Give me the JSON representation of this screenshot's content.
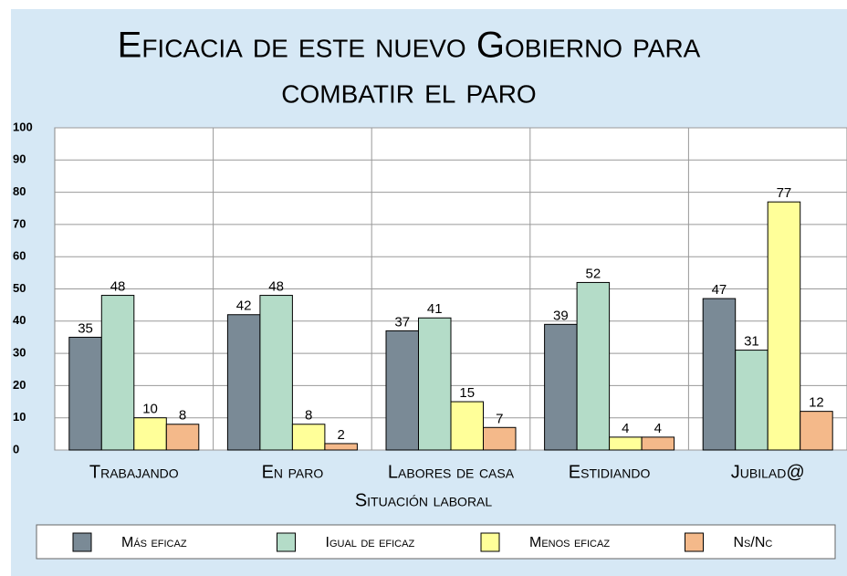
{
  "chart_data": {
    "type": "bar",
    "title": [
      "Eficacia de este nuevo Gobierno para",
      "combatir el paro"
    ],
    "x_label": "Situación laboral",
    "categories": [
      "Trabajando",
      "En paro",
      "Labores de casa",
      "Estidiando",
      "Jubilad@"
    ],
    "series": [
      {
        "name": "Más eficaz",
        "color": "#7a8a96",
        "values": [
          35,
          42,
          37,
          39,
          47
        ]
      },
      {
        "name": "Igual de eficaz",
        "color": "#b4dcc8",
        "values": [
          48,
          48,
          41,
          52,
          31
        ]
      },
      {
        "name": "Menos eficaz",
        "color": "#ffff99",
        "values": [
          10,
          8,
          15,
          4,
          77
        ]
      },
      {
        "name": "Ns/Nc",
        "color": "#f4b98a",
        "values": [
          8,
          2,
          7,
          4,
          12
        ]
      }
    ],
    "ylim": [
      0,
      100
    ],
    "yticks": [
      0,
      10,
      20,
      30,
      40,
      50,
      60,
      70,
      80,
      90,
      100
    ],
    "grid": true,
    "legend": "bottom"
  }
}
